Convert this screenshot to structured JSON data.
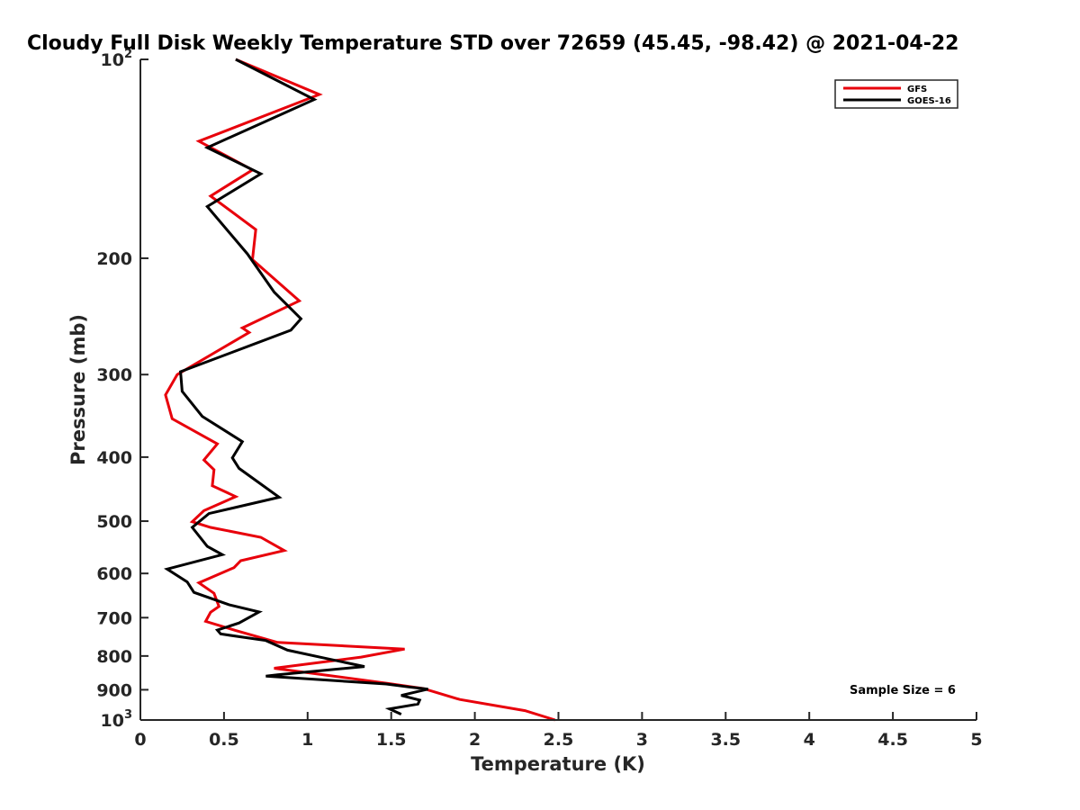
{
  "chart_data": {
    "type": "line",
    "title": "Cloudy Full Disk Weekly Temperature STD over 72659 (45.45, -98.42) @ 2021-04-22",
    "xlabel": "Temperature (K)",
    "ylabel": "Pressure (mb)",
    "xlim": [
      0,
      5
    ],
    "ylim": [
      100,
      1000
    ],
    "yscale": "log",
    "y_reversed": true,
    "x_ticks": [
      "0",
      "0.5",
      "1",
      "1.5",
      "2",
      "2.5",
      "3",
      "3.5",
      "4",
      "4.5",
      "5"
    ],
    "y_ticks": [
      {
        "value": 100,
        "base": "10",
        "exp": "2"
      },
      {
        "value": 200,
        "label": "200"
      },
      {
        "value": 300,
        "label": "300"
      },
      {
        "value": 400,
        "label": "400"
      },
      {
        "value": 500,
        "label": "500"
      },
      {
        "value": 600,
        "label": "600"
      },
      {
        "value": 700,
        "label": "700"
      },
      {
        "value": 800,
        "label": "800"
      },
      {
        "value": 900,
        "label": "900"
      },
      {
        "value": 1000,
        "base": "10",
        "exp": "3"
      }
    ],
    "legend_position": "top-right",
    "annotation": "Sample Size = 6",
    "series": [
      {
        "name": "GFS",
        "color": "#e8000b",
        "points": [
          [
            0.57,
            100
          ],
          [
            1.07,
            113
          ],
          [
            0.35,
            133
          ],
          [
            0.67,
            147
          ],
          [
            0.42,
            161
          ],
          [
            0.69,
            181
          ],
          [
            0.67,
            201
          ],
          [
            0.95,
            232
          ],
          [
            0.61,
            255
          ],
          [
            0.65,
            259
          ],
          [
            0.22,
            300
          ],
          [
            0.15,
            322
          ],
          [
            0.19,
            350
          ],
          [
            0.46,
            382
          ],
          [
            0.38,
            404
          ],
          [
            0.44,
            418
          ],
          [
            0.43,
            442
          ],
          [
            0.57,
            459
          ],
          [
            0.38,
            482
          ],
          [
            0.31,
            501
          ],
          [
            0.42,
            511
          ],
          [
            0.72,
            529
          ],
          [
            0.86,
            554
          ],
          [
            0.6,
            574
          ],
          [
            0.56,
            588
          ],
          [
            0.35,
            620
          ],
          [
            0.44,
            643
          ],
          [
            0.47,
            673
          ],
          [
            0.42,
            687
          ],
          [
            0.39,
            709
          ],
          [
            0.57,
            732
          ],
          [
            0.82,
            763
          ],
          [
            1.58,
            781
          ],
          [
            1.32,
            803
          ],
          [
            0.8,
            835
          ],
          [
            1.48,
            880
          ],
          [
            1.69,
            896
          ],
          [
            1.91,
            931
          ],
          [
            2.3,
            968
          ],
          [
            2.48,
            1000
          ]
        ]
      },
      {
        "name": "GOES-16",
        "color": "#000000",
        "points": [
          [
            0.57,
            100
          ],
          [
            1.04,
            115
          ],
          [
            0.4,
            136
          ],
          [
            0.72,
            149
          ],
          [
            0.4,
            167
          ],
          [
            0.64,
            197
          ],
          [
            0.8,
            225
          ],
          [
            0.96,
            247
          ],
          [
            0.9,
            257
          ],
          [
            0.24,
            297
          ],
          [
            0.25,
            318
          ],
          [
            0.37,
            347
          ],
          [
            0.61,
            379
          ],
          [
            0.55,
            401
          ],
          [
            0.59,
            416
          ],
          [
            0.83,
            460
          ],
          [
            0.41,
            487
          ],
          [
            0.31,
            511
          ],
          [
            0.4,
            546
          ],
          [
            0.49,
            562
          ],
          [
            0.16,
            591
          ],
          [
            0.28,
            618
          ],
          [
            0.32,
            641
          ],
          [
            0.53,
            669
          ],
          [
            0.71,
            686
          ],
          [
            0.59,
            713
          ],
          [
            0.46,
            731
          ],
          [
            0.48,
            741
          ],
          [
            0.75,
            758
          ],
          [
            0.88,
            784
          ],
          [
            1.1,
            806
          ],
          [
            1.34,
            830
          ],
          [
            0.82,
            854
          ],
          [
            0.75,
            858
          ],
          [
            1.47,
            882
          ],
          [
            1.6,
            891
          ],
          [
            1.72,
            898
          ],
          [
            1.56,
            918
          ],
          [
            1.67,
            933
          ],
          [
            1.66,
            946
          ],
          [
            1.49,
            962
          ],
          [
            1.56,
            980
          ]
        ]
      }
    ]
  }
}
